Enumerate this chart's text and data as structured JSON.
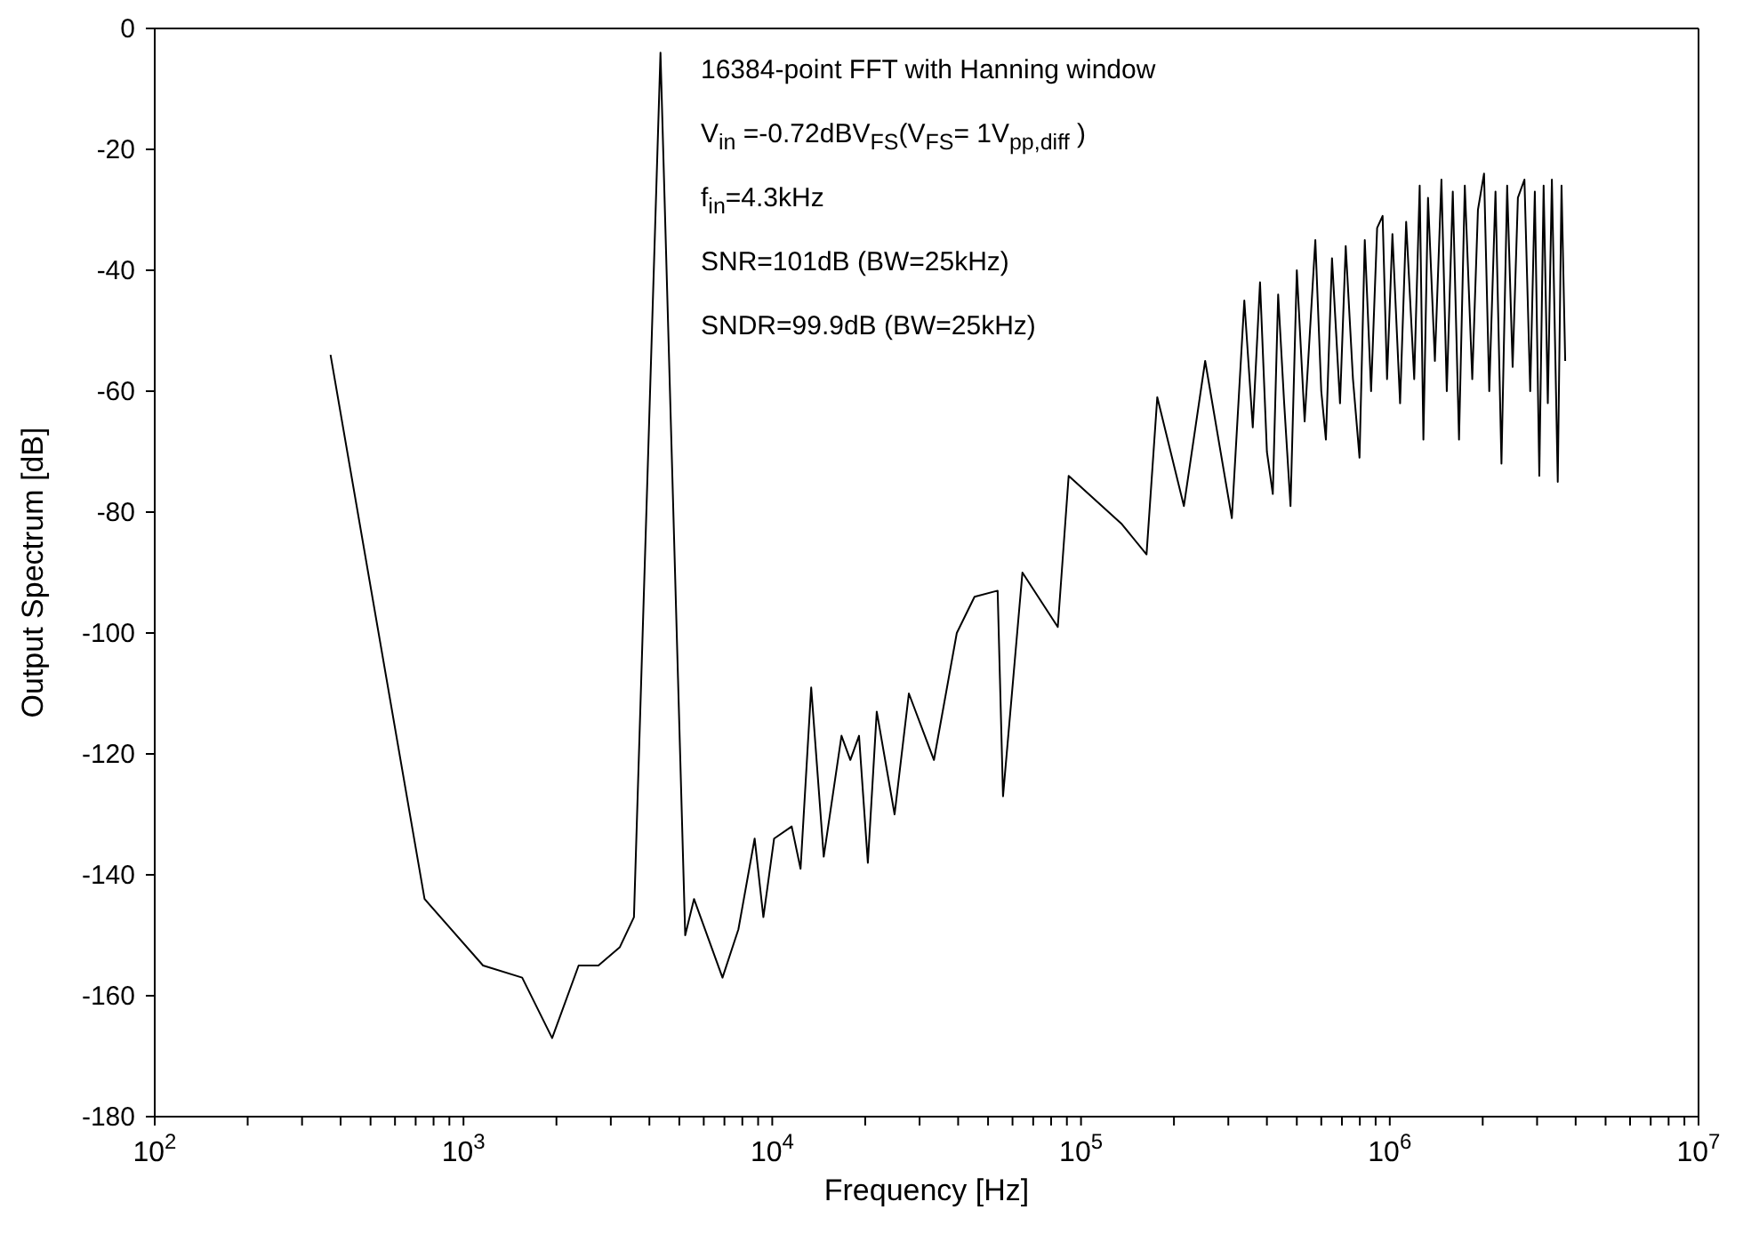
{
  "chart_data": {
    "type": "line",
    "xlabel": "Frequency  [Hz]",
    "ylabel": "Output Spectrum [dB]",
    "log": "x",
    "marker": "none",
    "line_style": "solid",
    "annotations": [
      "16384-point FFT with Hanning window",
      "V$_{in}$ =-0.72dBV$_{FS}$(V$_{FS}$= 1V$_{pp,diff}$ )",
      "f$_{in}$=4.3kHz",
      "SNR=101dB (BW=25kHz)",
      "SNDR=99.9dB (BW=25kHz)"
    ],
    "xlim": [
      100,
      10000000
    ],
    "xticks": [
      {
        "value": 100,
        "label": "10$^{2}$"
      },
      {
        "value": 200,
        "label": null
      },
      {
        "value": 300,
        "label": null
      },
      {
        "value": 400,
        "label": null
      },
      {
        "value": 500,
        "label": null
      },
      {
        "value": 600,
        "label": null
      },
      {
        "value": 700,
        "label": null
      },
      {
        "value": 800,
        "label": null
      },
      {
        "value": 900,
        "label": null
      },
      {
        "value": 1000,
        "label": "10$^{3}$"
      },
      {
        "value": 2000,
        "label": null
      },
      {
        "value": 3000,
        "label": null
      },
      {
        "value": 4000,
        "label": null
      },
      {
        "value": 5000,
        "label": null
      },
      {
        "value": 6000,
        "label": null
      },
      {
        "value": 7000,
        "label": null
      },
      {
        "value": 8000,
        "label": null
      },
      {
        "value": 9000,
        "label": null
      },
      {
        "value": 10000,
        "label": "10$^{4}$"
      },
      {
        "value": 20000,
        "label": null
      },
      {
        "value": 30000,
        "label": null
      },
      {
        "value": 40000,
        "label": null
      },
      {
        "value": 50000,
        "label": null
      },
      {
        "value": 60000,
        "label": null
      },
      {
        "value": 70000,
        "label": null
      },
      {
        "value": 80000,
        "label": null
      },
      {
        "value": 90000,
        "label": null
      },
      {
        "value": 100000,
        "label": "10$^{5}$"
      },
      {
        "value": 200000,
        "label": null
      },
      {
        "value": 300000,
        "label": null
      },
      {
        "value": 400000,
        "label": null
      },
      {
        "value": 500000,
        "label": null
      },
      {
        "value": 600000,
        "label": null
      },
      {
        "value": 700000,
        "label": null
      },
      {
        "value": 800000,
        "label": null
      },
      {
        "value": 900000,
        "label": null
      },
      {
        "value": 1000000,
        "label": "10$^{6}$"
      },
      {
        "value": 2000000,
        "label": null
      },
      {
        "value": 3000000,
        "label": null
      },
      {
        "value": 4000000,
        "label": null
      },
      {
        "value": 5000000,
        "label": null
      },
      {
        "value": 6000000,
        "label": null
      },
      {
        "value": 7000000,
        "label": null
      },
      {
        "value": 8000000,
        "label": null
      },
      {
        "value": 9000000,
        "label": null
      },
      {
        "value": 10000000,
        "label": "10$^{7}$"
      }
    ],
    "ylim": [
      -180,
      0
    ],
    "yticks": [
      -180,
      -160,
      -140,
      -120,
      -100,
      -80,
      -60,
      -40,
      -20,
      0
    ],
    "series": [
      {
        "color": "#000000",
        "x": [
          371,
          748,
          1157,
          1549,
          1937,
          2360,
          2735,
          3206,
          3565,
          4345,
          5225,
          5580,
          6900,
          7770,
          8770,
          9360,
          10140,
          11560,
          12350,
          13370,
          14680,
          16760,
          17900,
          19100,
          20400,
          21800,
          24900,
          27700,
          33400,
          39600,
          45200,
          53700,
          55900,
          64600,
          84100,
          91200,
          135600,
          163000,
          176600,
          215400,
          252400,
          308000,
          338000,
          360000,
          380000,
          400000,
          418000,
          435000,
          455000,
          477000,
          500000,
          530000,
          574000,
          600000,
          621000,
          650000,
          690000,
          720000,
          760000,
          798000,
          830000,
          870000,
          910000,
          948000,
          980000,
          1020000,
          1080000,
          1130000,
          1200000,
          1250000,
          1285000,
          1330000,
          1400000,
          1470000,
          1530000,
          1600000,
          1676000,
          1750000,
          1850000,
          1930000,
          2020000,
          2100000,
          2200000,
          2300000,
          2400000,
          2500000,
          2600000,
          2730000,
          2850000,
          2950000,
          3050000,
          3150000,
          3250000,
          3350000,
          3500000,
          3600000,
          3700000
        ],
        "values": [
          -54,
          -144,
          -155,
          -157,
          -167,
          -155,
          -155,
          -152,
          -147,
          -4,
          -150,
          -144,
          -157,
          -149,
          -134,
          -147,
          -134,
          -132,
          -139,
          -109,
          -137,
          -117,
          -121,
          -117,
          -138,
          -113,
          -130,
          -110,
          -121,
          -100,
          -94,
          -93,
          -127,
          -90,
          -99,
          -74,
          -82,
          -87,
          -61,
          -79,
          -55,
          -81,
          -45,
          -66,
          -42,
          -70,
          -77,
          -44,
          -62,
          -79,
          -40,
          -65,
          -35,
          -60,
          -68,
          -38,
          -62,
          -36,
          -58,
          -71,
          -35,
          -60,
          -33,
          -31,
          -58,
          -34,
          -62,
          -32,
          -58,
          -26,
          -68,
          -28,
          -55,
          -25,
          -60,
          -27,
          -68,
          -26,
          -58,
          -30,
          -24,
          -60,
          -27,
          -72,
          -26,
          -56,
          -28,
          -25,
          -60,
          -27,
          -74,
          -26,
          -62,
          -25,
          -75,
          -26,
          -55
        ]
      }
    ]
  }
}
